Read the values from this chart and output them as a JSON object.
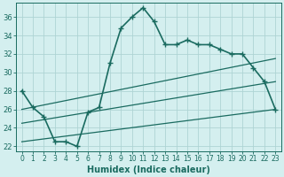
{
  "xlabel": "Humidex (Indice chaleur)",
  "bg_color": "#d4efef",
  "line_color": "#1a6b60",
  "xlim": [
    -0.5,
    23.5
  ],
  "ylim": [
    21.5,
    37.5
  ],
  "xticks": [
    0,
    1,
    2,
    3,
    4,
    5,
    6,
    7,
    8,
    9,
    10,
    11,
    12,
    13,
    14,
    15,
    16,
    17,
    18,
    19,
    20,
    21,
    22,
    23
  ],
  "yticks": [
    22,
    24,
    26,
    28,
    30,
    32,
    34,
    36
  ],
  "grid_color": "#aed4d4",
  "main_line": {
    "x": [
      0,
      1,
      2,
      3,
      4,
      5,
      6,
      7,
      8,
      9,
      10,
      11,
      12,
      13,
      14,
      15,
      16,
      17,
      18,
      19,
      20,
      21,
      22,
      23
    ],
    "y": [
      28.0,
      26.2,
      25.2,
      22.5,
      22.5,
      22.0,
      25.7,
      26.2,
      31.0,
      34.8,
      36.0,
      37.0,
      35.5,
      33.0,
      33.0,
      33.5,
      33.0,
      33.0,
      32.5,
      32.0,
      32.0,
      30.5,
      29.0,
      26.0
    ]
  },
  "diag_lines": [
    {
      "x0": 0,
      "x1": 23,
      "y0": 26.0,
      "y1": 31.5
    },
    {
      "x0": 0,
      "x1": 23,
      "y0": 24.5,
      "y1": 29.0
    },
    {
      "x0": 0,
      "x1": 23,
      "y0": 22.5,
      "y1": 26.0
    }
  ]
}
